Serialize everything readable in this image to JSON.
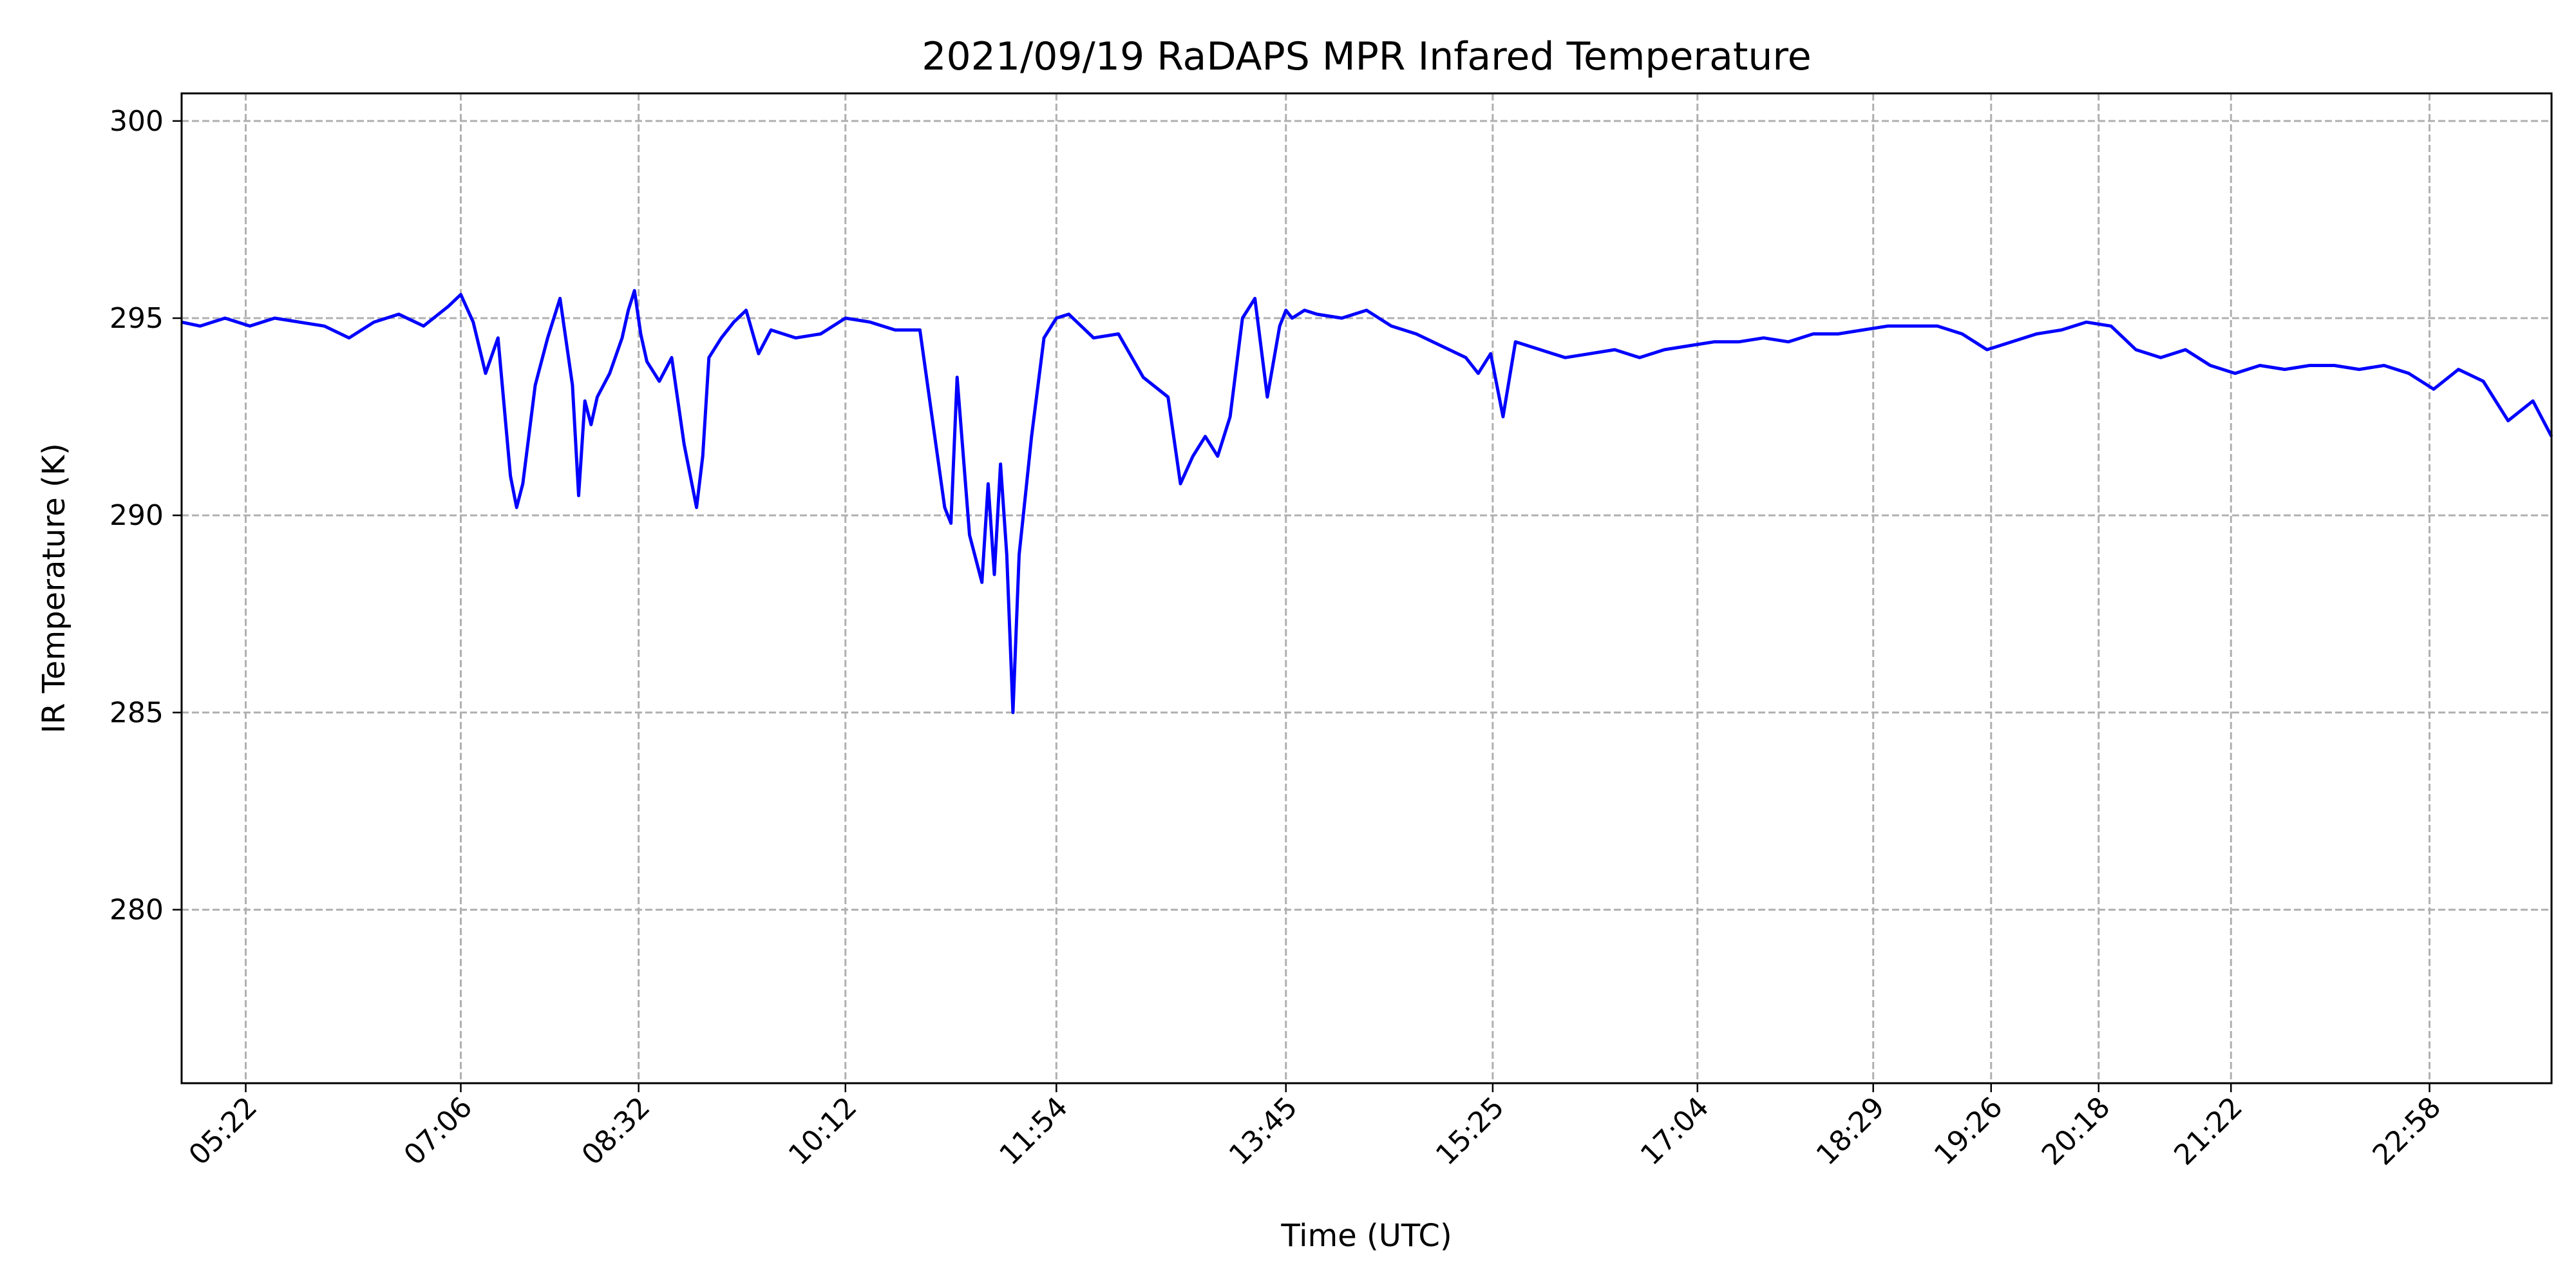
{
  "chart_data": {
    "type": "line",
    "title": "2021/09/19 RaDAPS MPR Infared Temperature",
    "xlabel": "Time (UTC)",
    "ylabel": "IR Temperature (K)",
    "x_unit": "hours (UTC)",
    "xlim": [
      4.85,
      23.95
    ],
    "ylim": [
      275.6,
      300.7
    ],
    "grid": true,
    "x_ticks": [
      {
        "label": "05:22",
        "value": 5.3667
      },
      {
        "label": "07:06",
        "value": 7.1
      },
      {
        "label": "08:32",
        "value": 8.5333
      },
      {
        "label": "10:12",
        "value": 10.2
      },
      {
        "label": "11:54",
        "value": 11.9
      },
      {
        "label": "13:45",
        "value": 13.75
      },
      {
        "label": "15:25",
        "value": 15.4167
      },
      {
        "label": "17:04",
        "value": 17.0667
      },
      {
        "label": "18:29",
        "value": 18.4833
      },
      {
        "label": "19:26",
        "value": 19.4333
      },
      {
        "label": "20:18",
        "value": 20.3
      },
      {
        "label": "21:22",
        "value": 21.3667
      },
      {
        "label": "22:58",
        "value": 22.9667
      }
    ],
    "y_ticks": [
      {
        "label": "280",
        "value": 280
      },
      {
        "label": "285",
        "value": 285
      },
      {
        "label": "290",
        "value": 290
      },
      {
        "label": "295",
        "value": 295
      },
      {
        "label": "300",
        "value": 300
      }
    ],
    "series": [
      {
        "color": "#0000ff",
        "x": [
          4.85,
          5.0,
          5.2,
          5.4,
          5.6,
          5.8,
          6.0,
          6.2,
          6.4,
          6.6,
          6.8,
          7.0,
          7.1,
          7.2,
          7.3,
          7.4,
          7.5,
          7.55,
          7.6,
          7.7,
          7.8,
          7.9,
          8.0,
          8.05,
          8.1,
          8.15,
          8.2,
          8.3,
          8.4,
          8.45,
          8.5,
          8.55,
          8.6,
          8.7,
          8.8,
          8.9,
          9.0,
          9.05,
          9.1,
          9.2,
          9.3,
          9.4,
          9.5,
          9.6,
          9.8,
          10.0,
          10.2,
          10.4,
          10.6,
          10.8,
          11.0,
          11.05,
          11.1,
          11.2,
          11.3,
          11.35,
          11.4,
          11.45,
          11.5,
          11.55,
          11.6,
          11.65,
          11.7,
          11.8,
          11.9,
          12.0,
          12.2,
          12.4,
          12.6,
          12.8,
          12.9,
          13.0,
          13.1,
          13.2,
          13.3,
          13.4,
          13.5,
          13.6,
          13.7,
          13.75,
          13.8,
          13.9,
          14.0,
          14.2,
          14.4,
          14.6,
          14.8,
          15.0,
          15.2,
          15.3,
          15.4,
          15.5,
          15.6,
          15.8,
          16.0,
          16.2,
          16.4,
          16.6,
          16.8,
          17.0,
          17.2,
          17.4,
          17.6,
          17.8,
          18.0,
          18.2,
          18.4,
          18.6,
          18.8,
          19.0,
          19.2,
          19.4,
          19.6,
          19.8,
          20.0,
          20.2,
          20.4,
          20.6,
          20.8,
          21.0,
          21.2,
          21.4,
          21.6,
          21.8,
          22.0,
          22.2,
          22.4,
          22.6,
          22.8,
          23.0,
          23.2,
          23.4,
          23.6,
          23.8,
          23.95
        ],
        "y": [
          294.9,
          294.8,
          295.0,
          294.8,
          295.0,
          294.9,
          294.8,
          294.5,
          294.9,
          295.1,
          294.8,
          295.3,
          295.6,
          294.9,
          293.6,
          294.5,
          291.0,
          290.2,
          290.8,
          293.3,
          294.5,
          295.5,
          293.3,
          290.5,
          292.9,
          292.3,
          293.0,
          293.6,
          294.5,
          295.2,
          295.7,
          294.6,
          293.9,
          293.4,
          294.0,
          291.8,
          290.2,
          291.5,
          294.0,
          294.5,
          294.9,
          295.2,
          294.1,
          294.7,
          294.5,
          294.6,
          295.0,
          294.9,
          294.7,
          294.7,
          290.2,
          289.8,
          293.5,
          289.5,
          288.3,
          290.8,
          288.5,
          291.3,
          289.0,
          285.0,
          289.0,
          290.5,
          292.0,
          294.5,
          295.0,
          295.1,
          294.5,
          294.6,
          293.5,
          293.0,
          290.8,
          291.5,
          292.0,
          291.5,
          292.5,
          295.0,
          295.5,
          293.0,
          294.8,
          295.2,
          295.0,
          295.2,
          295.1,
          295.0,
          295.2,
          294.8,
          294.6,
          294.3,
          294.0,
          293.6,
          294.1,
          292.5,
          294.4,
          294.2,
          294.0,
          294.1,
          294.2,
          294.0,
          294.2,
          294.3,
          294.4,
          294.4,
          294.5,
          294.4,
          294.6,
          294.6,
          294.7,
          294.8,
          294.8,
          294.8,
          294.6,
          294.2,
          294.4,
          294.6,
          294.7,
          294.9,
          294.8,
          294.2,
          294.0,
          294.2,
          293.8,
          293.6,
          293.8,
          293.7,
          293.8,
          293.8,
          293.7,
          293.8,
          293.6,
          293.2,
          293.7,
          293.4,
          292.4,
          292.9,
          292.0
        ]
      }
    ]
  }
}
